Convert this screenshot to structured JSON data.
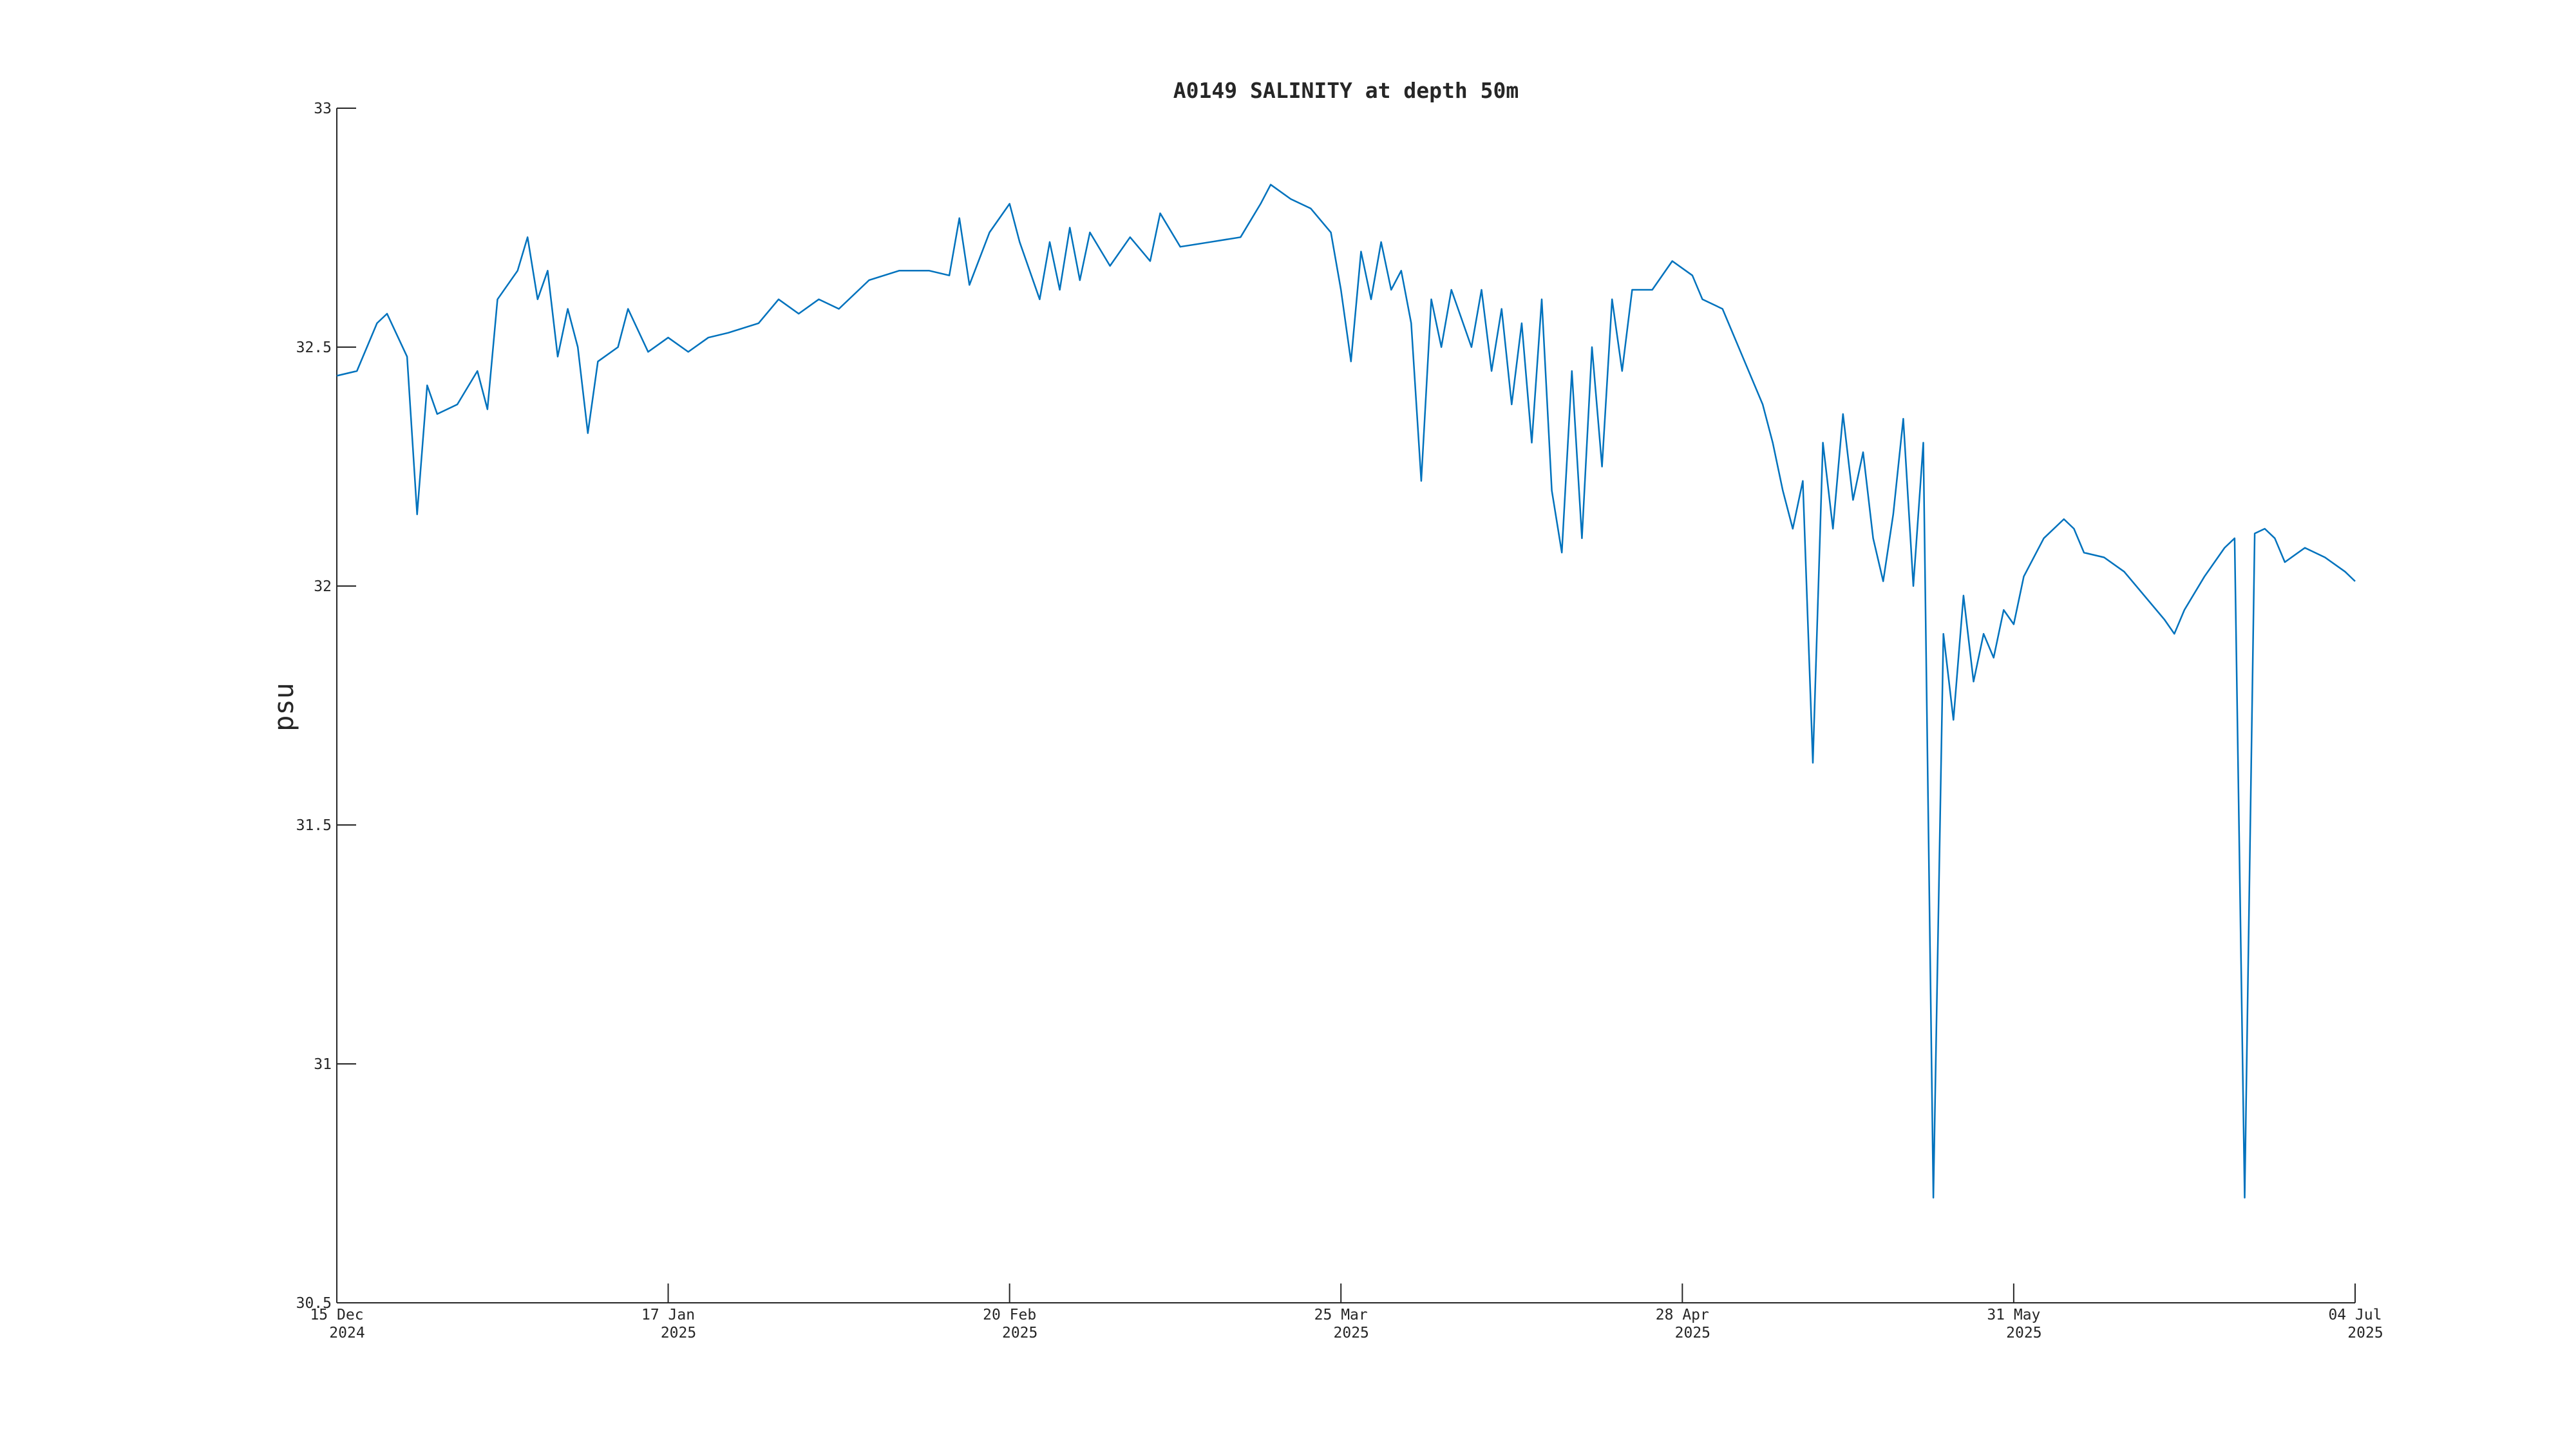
{
  "chart_data": {
    "type": "line",
    "title": "A0149 SALINITY at depth 50m",
    "y_label": "psu",
    "xlim": [
      "2024-12-15",
      "2025-07-04"
    ],
    "xticks": [
      {
        "value": "2024-12-15",
        "label": [
          "15 Dec",
          "2024"
        ]
      },
      {
        "value": "2025-01-17",
        "label": [
          "17 Jan",
          "2025"
        ]
      },
      {
        "value": "2025-02-20",
        "label": [
          "20 Feb",
          "2025"
        ]
      },
      {
        "value": "2025-03-25",
        "label": [
          "25 Mar",
          "2025"
        ]
      },
      {
        "value": "2025-04-28",
        "label": [
          "28 Apr",
          "2025"
        ]
      },
      {
        "value": "2025-05-31",
        "label": [
          "31 May",
          "2025"
        ]
      },
      {
        "value": "2025-07-04",
        "label": [
          "04 Jul",
          "2025"
        ]
      }
    ],
    "ylim": [
      30.5,
      33
    ],
    "yticks": [
      30.5,
      31,
      31.5,
      32,
      32.5,
      33
    ],
    "grid": false,
    "x": [
      "2024-12-15",
      "2024-12-17",
      "2024-12-19",
      "2024-12-20",
      "2024-12-22",
      "2024-12-23",
      "2024-12-24",
      "2024-12-25",
      "2024-12-27",
      "2024-12-29",
      "2024-12-30",
      "2024-12-31",
      "2025-01-02",
      "2025-01-03",
      "2025-01-04",
      "2025-01-05",
      "2025-01-06",
      "2025-01-07",
      "2025-01-08",
      "2025-01-09",
      "2025-01-10",
      "2025-01-12",
      "2025-01-13",
      "2025-01-15",
      "2025-01-17",
      "2025-01-19",
      "2025-01-21",
      "2025-01-23",
      "2025-01-26",
      "2025-01-28",
      "2025-01-30",
      "2025-02-01",
      "2025-02-03",
      "2025-02-06",
      "2025-02-09",
      "2025-02-12",
      "2025-02-14",
      "2025-02-15",
      "2025-02-16",
      "2025-02-18",
      "2025-02-20",
      "2025-02-21",
      "2025-02-23",
      "2025-02-24",
      "2025-02-25",
      "2025-02-26",
      "2025-02-27",
      "2025-02-28",
      "2025-03-02",
      "2025-03-04",
      "2025-03-06",
      "2025-03-07",
      "2025-03-09",
      "2025-03-12",
      "2025-03-15",
      "2025-03-17",
      "2025-03-18",
      "2025-03-20",
      "2025-03-22",
      "2025-03-24",
      "2025-03-25",
      "2025-03-26",
      "2025-03-27",
      "2025-03-28",
      "2025-03-29",
      "2025-03-30",
      "2025-03-31",
      "2025-04-01",
      "2025-04-02",
      "2025-04-03",
      "2025-04-04",
      "2025-04-05",
      "2025-04-07",
      "2025-04-08",
      "2025-04-09",
      "2025-04-10",
      "2025-04-11",
      "2025-04-12",
      "2025-04-13",
      "2025-04-14",
      "2025-04-15",
      "2025-04-16",
      "2025-04-17",
      "2025-04-18",
      "2025-04-19",
      "2025-04-20",
      "2025-04-21",
      "2025-04-22",
      "2025-04-23",
      "2025-04-25",
      "2025-04-27",
      "2025-04-29",
      "2025-04-30",
      "2025-05-02",
      "2025-05-04",
      "2025-05-06",
      "2025-05-07",
      "2025-05-08",
      "2025-05-09",
      "2025-05-10",
      "2025-05-11",
      "2025-05-12",
      "2025-05-13",
      "2025-05-14",
      "2025-05-15",
      "2025-05-16",
      "2025-05-17",
      "2025-05-18",
      "2025-05-19",
      "2025-05-20",
      "2025-05-21",
      "2025-05-22",
      "2025-05-23",
      "2025-05-24",
      "2025-05-25",
      "2025-05-26",
      "2025-05-27",
      "2025-05-28",
      "2025-05-29",
      "2025-05-30",
      "2025-05-31",
      "2025-06-01",
      "2025-06-03",
      "2025-06-05",
      "2025-06-06",
      "2025-06-07",
      "2025-06-09",
      "2025-06-11",
      "2025-06-13",
      "2025-06-15",
      "2025-06-16",
      "2025-06-17",
      "2025-06-19",
      "2025-06-21",
      "2025-06-22",
      "2025-06-23",
      "2025-06-24",
      "2025-06-25",
      "2025-06-26",
      "2025-06-27",
      "2025-06-29",
      "2025-07-01",
      "2025-07-03",
      "2025-07-04"
    ],
    "series": [
      {
        "color": "#0072bd",
        "values": [
          32.44,
          32.45,
          32.55,
          32.57,
          32.48,
          32.15,
          32.42,
          32.36,
          32.38,
          32.45,
          32.37,
          32.6,
          32.66,
          32.73,
          32.6,
          32.66,
          32.48,
          32.58,
          32.5,
          32.32,
          32.47,
          32.5,
          32.58,
          32.49,
          32.52,
          32.49,
          32.52,
          32.53,
          32.55,
          32.6,
          32.57,
          32.6,
          32.58,
          32.64,
          32.66,
          32.66,
          32.65,
          32.77,
          32.63,
          32.74,
          32.8,
          32.72,
          32.6,
          32.72,
          32.62,
          32.75,
          32.64,
          32.74,
          32.67,
          32.73,
          32.68,
          32.78,
          32.71,
          32.72,
          32.73,
          32.8,
          32.84,
          32.81,
          32.79,
          32.74,
          32.62,
          32.47,
          32.7,
          32.6,
          32.72,
          32.62,
          32.66,
          32.55,
          32.22,
          32.6,
          32.5,
          32.62,
          32.5,
          32.62,
          32.45,
          32.58,
          32.38,
          32.55,
          32.3,
          32.6,
          32.2,
          32.07,
          32.45,
          32.1,
          32.5,
          32.25,
          32.6,
          32.45,
          32.62,
          32.62,
          32.68,
          32.65,
          32.6,
          32.58,
          32.48,
          32.38,
          32.3,
          32.2,
          32.12,
          32.22,
          31.63,
          32.3,
          32.12,
          32.36,
          32.18,
          32.28,
          32.1,
          32.01,
          32.15,
          32.35,
          32.0,
          32.3,
          30.72,
          31.9,
          31.72,
          31.98,
          31.8,
          31.9,
          31.85,
          31.95,
          31.92,
          32.02,
          32.1,
          32.14,
          32.12,
          32.07,
          32.06,
          32.03,
          31.98,
          31.93,
          31.9,
          31.95,
          32.02,
          32.08,
          32.1,
          30.72,
          32.11,
          32.12,
          32.1,
          32.05,
          32.08,
          32.06,
          32.03,
          32.01
        ]
      }
    ]
  }
}
